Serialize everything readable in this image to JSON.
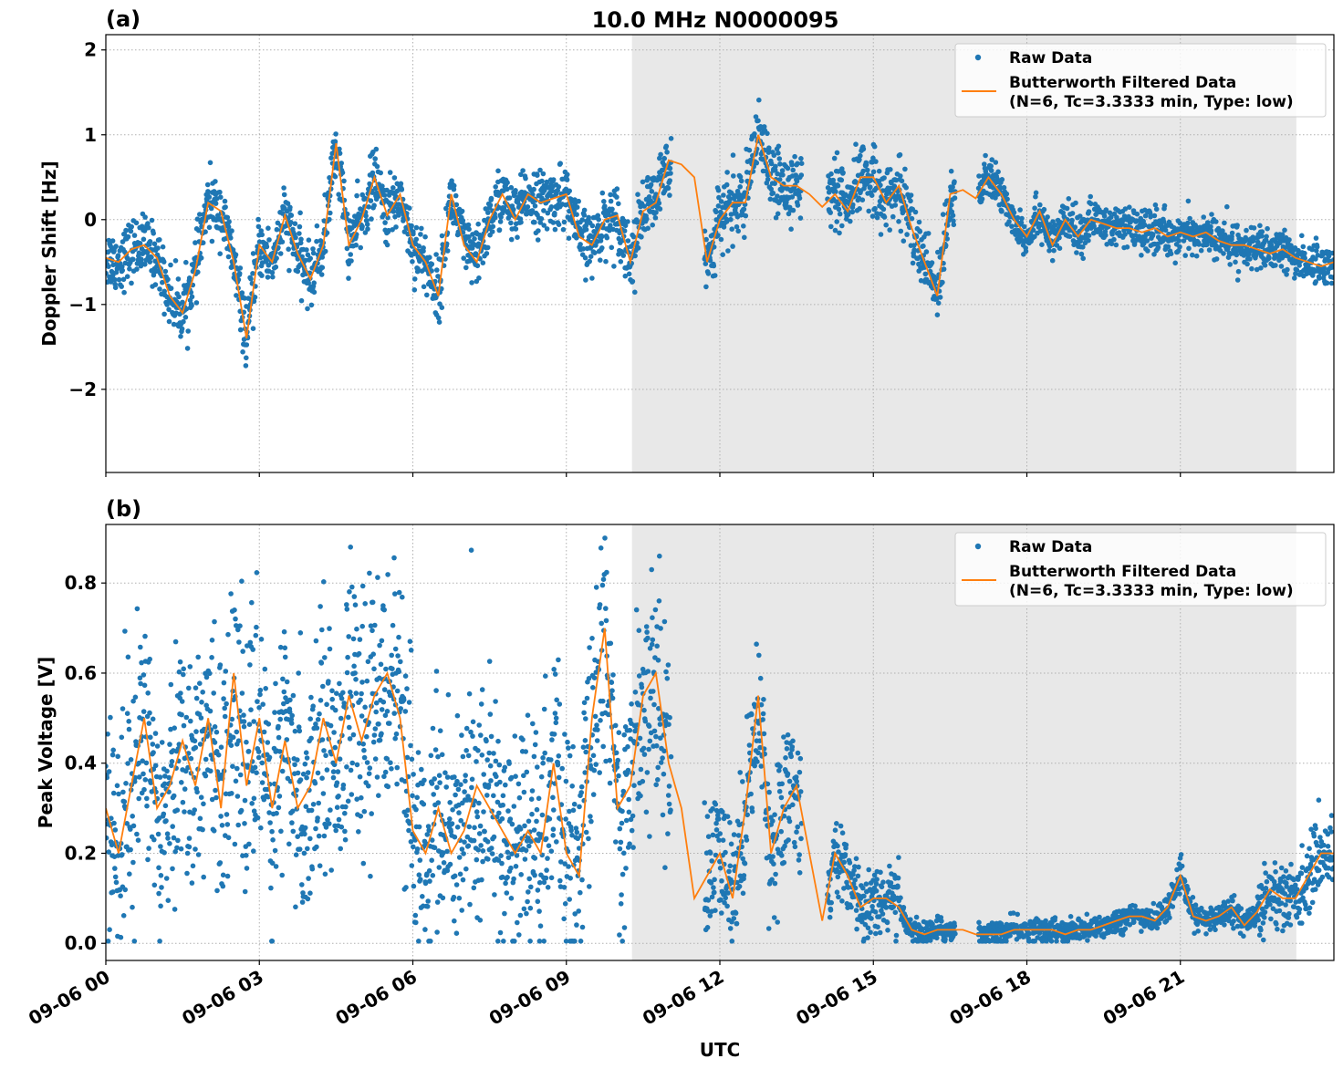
{
  "title": "10.0 MHz N0000095",
  "colors": {
    "raw": "#1f77b4",
    "filtered": "#ff7f0e",
    "shade": "#e8e8e8",
    "grid": "#b0b0b0"
  },
  "legend": {
    "raw_label": "Raw Data",
    "filtered_label_line1": "Butterworth Filtered Data",
    "filtered_label_line2": "(N=6, Tc=3.3333 min, Type: low)",
    "placement": "top-right"
  },
  "xlabel": "UTC",
  "chart_data": [
    {
      "type": "scatter+line",
      "panel_label": "(a)",
      "ylabel": "Doppler Shift [Hz]",
      "ylim": [
        -2.98,
        2.18
      ],
      "yticks": [
        2,
        1,
        0,
        -1,
        -2
      ],
      "ytick_labels": [
        "2",
        "1",
        "0",
        "−1",
        "−2"
      ],
      "xlim": [
        "09-06 00:00",
        "09-07 00:00"
      ],
      "xtick_labels": [
        "09-06 00",
        "09-06 03",
        "09-06 06",
        "09-06 09",
        "09-06 12",
        "09-06 15",
        "09-06 18",
        "09-06 21"
      ],
      "grid": true,
      "shaded_interval": [
        "09-06 10:17",
        "09-06 23:16"
      ],
      "data_gaps": [
        [
          "09-06 11:03",
          "09-06 11:42"
        ],
        [
          "09-06 13:36",
          "09-06 14:06"
        ],
        [
          "09-06 16:36",
          "09-06 17:03"
        ]
      ],
      "x_step_minutes": 15,
      "x_start": "09-06 00:00",
      "filtered": [
        -0.45,
        -0.5,
        -0.35,
        -0.3,
        -0.45,
        -0.9,
        -1.1,
        -0.6,
        0.2,
        0.1,
        -0.5,
        -1.4,
        -0.3,
        -0.5,
        0.05,
        -0.4,
        -0.7,
        -0.3,
        0.9,
        -0.3,
        0.0,
        0.5,
        0.05,
        0.3,
        -0.3,
        -0.5,
        -0.9,
        0.3,
        -0.3,
        -0.5,
        0.0,
        0.3,
        0.0,
        0.3,
        0.2,
        0.25,
        0.3,
        -0.2,
        -0.3,
        0.0,
        0.05,
        -0.5,
        0.1,
        0.2,
        0.7,
        0.65,
        0.5,
        -0.5,
        0.0,
        0.2,
        0.2,
        1.0,
        0.5,
        0.4,
        0.4,
        0.3,
        0.15,
        0.3,
        0.1,
        0.5,
        0.5,
        0.2,
        0.4,
        -0.1,
        -0.5,
        -0.9,
        0.3,
        0.35,
        0.25,
        0.5,
        0.3,
        0.0,
        -0.2,
        0.1,
        -0.3,
        0.0,
        -0.2,
        0.0,
        -0.05,
        -0.1,
        -0.1,
        -0.15,
        -0.1,
        -0.2,
        -0.15,
        -0.2,
        -0.15,
        -0.25,
        -0.3,
        -0.3,
        -0.35,
        -0.4,
        -0.35,
        -0.45,
        -0.5,
        -0.55,
        -0.5
      ],
      "raw_halfwidth": [
        {
          "from_hour": 0,
          "to_hour": 10,
          "value": 0.32
        },
        {
          "from_hour": 10,
          "to_hour": 17,
          "value": 0.35
        },
        {
          "from_hour": 17,
          "to_hour": 24,
          "value": 0.22
        }
      ]
    },
    {
      "type": "scatter+line",
      "panel_label": "(b)",
      "ylabel": "Peak Voltage [V]",
      "ylim": [
        -0.038,
        0.93
      ],
      "yticks": [
        0.8,
        0.6,
        0.4,
        0.2,
        0.0
      ],
      "ytick_labels": [
        "0.8",
        "0.6",
        "0.4",
        "0.2",
        "0.0"
      ],
      "xlim": [
        "09-06 00:00",
        "09-07 00:00"
      ],
      "xtick_labels": [
        "09-06 00",
        "09-06 03",
        "09-06 06",
        "09-06 09",
        "09-06 12",
        "09-06 15",
        "09-06 18",
        "09-06 21"
      ],
      "grid": true,
      "shaded_interval": [
        "09-06 10:17",
        "09-06 23:16"
      ],
      "data_gaps": [
        [
          "09-06 11:03",
          "09-06 11:42"
        ],
        [
          "09-06 13:36",
          "09-06 14:06"
        ],
        [
          "09-06 16:36",
          "09-06 17:03"
        ]
      ],
      "x_step_minutes": 15,
      "x_start": "09-06 00:00",
      "filtered": [
        0.3,
        0.2,
        0.35,
        0.5,
        0.3,
        0.35,
        0.45,
        0.35,
        0.5,
        0.3,
        0.6,
        0.35,
        0.5,
        0.3,
        0.45,
        0.3,
        0.35,
        0.5,
        0.4,
        0.55,
        0.45,
        0.55,
        0.6,
        0.5,
        0.25,
        0.2,
        0.3,
        0.2,
        0.25,
        0.35,
        0.3,
        0.25,
        0.2,
        0.25,
        0.2,
        0.4,
        0.2,
        0.15,
        0.5,
        0.7,
        0.3,
        0.35,
        0.55,
        0.6,
        0.4,
        0.3,
        0.1,
        0.15,
        0.2,
        0.1,
        0.3,
        0.55,
        0.2,
        0.3,
        0.35,
        0.2,
        0.05,
        0.2,
        0.15,
        0.08,
        0.1,
        0.1,
        0.08,
        0.03,
        0.02,
        0.03,
        0.03,
        0.03,
        0.02,
        0.02,
        0.02,
        0.03,
        0.03,
        0.03,
        0.03,
        0.02,
        0.03,
        0.03,
        0.04,
        0.05,
        0.06,
        0.06,
        0.05,
        0.08,
        0.15,
        0.06,
        0.05,
        0.06,
        0.08,
        0.04,
        0.07,
        0.12,
        0.1,
        0.1,
        0.15,
        0.2,
        0.2
      ],
      "raw_halfwidth": [
        {
          "from_hour": 0,
          "to_hour": 11,
          "value": 0.24
        },
        {
          "from_hour": 11,
          "to_hour": 14,
          "value": 0.14
        },
        {
          "from_hour": 14,
          "to_hour": 15.5,
          "value": 0.07
        },
        {
          "from_hour": 15.5,
          "to_hour": 22.5,
          "value": 0.025
        },
        {
          "from_hour": 22.5,
          "to_hour": 24,
          "value": 0.07
        }
      ]
    }
  ]
}
